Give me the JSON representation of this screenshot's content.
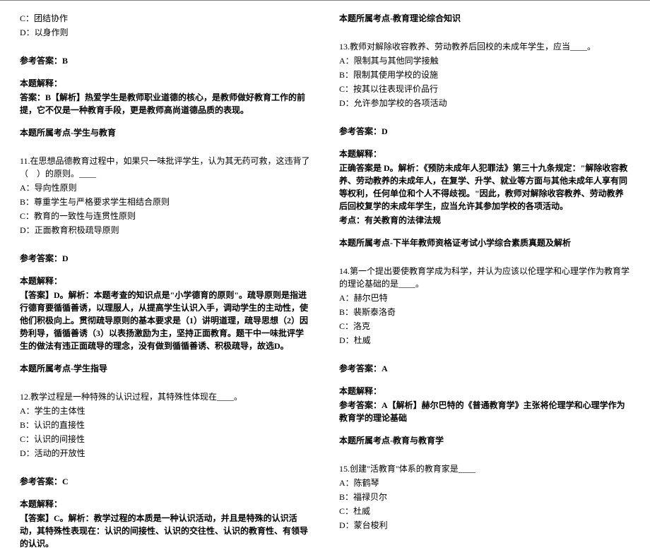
{
  "left": {
    "optC": "C：团结协作",
    "optD": "D：以身作则",
    "ans10_label": "参考答案：B",
    "ans10_exp_title": "本题解释：",
    "ans10_exp_body": "答案：B【解析】热爱学生是教师职业道德的核心，是教师做好教育工作的前提，它不仅是一种教育手段，更是教师高尚道德品质的表现。",
    "ans10_topic": "本题所属考点-学生与教育",
    "q11_stem": "11.在思想品德教育过程中，如果只一味批评学生，认为其无药可救，这违背了（　）的原则。____",
    "q11_A": "A：导向性原则",
    "q11_B": "B：尊重学生与严格要求学生相结合原则",
    "q11_C": "C：教育的一致性与连贯性原则",
    "q11_D": "D：正面教育积极疏导原则",
    "ans11_label": "参考答案：D",
    "ans11_exp_title": "本题解释：",
    "ans11_exp_body": "【答案】D。解析：本题考查的知识点是\"小学德育的原则\"。疏导原则是指进行德育要循循善诱，以理服人，从提高学生认识入手，调动学生的主动性，使他们积极向上。贯彻疏导原则的基本要求是（1）讲明道理，疏导思想（2）因势利导，循循善诱（3）以表扬激励为主，坚持正面教育。题干中一味批评学生的做法有违正面疏导的理念，没有做到循循善诱、积极疏导，故选D。",
    "ans11_topic": "本题所属考点-学生指导",
    "q12_stem": "12.教学过程是一种特殊的认识过程，其特殊性体现在____。",
    "q12_A": "A：学生的主体性",
    "q12_B": "B：认识的直接性",
    "q12_C": "C：认识的间接性",
    "q12_D": "D：活动的开放性",
    "ans12_label": "参考答案：C",
    "ans12_exp_title": "本题解释：",
    "ans12_exp_body": "【答案】C。解析：教学过程的本质是一种认识活动，并且是特殊的认识活动，其特殊性表现在：认识的间接性、认识的交往性、认识的教育性、有领导的认识。"
  },
  "right": {
    "topic_top": "本题所属考点-教育理论综合知识",
    "q13_stem": "13.教师对解除收容教养、劳动教养后回校的未成年学生，应当____。",
    "q13_A": "A：限制其与其他同学接触",
    "q13_B": "B：限制其使用学校的设施",
    "q13_C": "C：按其以往表现评价品行",
    "q13_D": "D：允许参加学校的各项活动",
    "ans13_label": "参考答案：D",
    "ans13_exp_title": "本题解释：",
    "ans13_exp_body": "正确答案是 D。解析：《预防未成年人犯罪法》第三十九条规定：\"解除收容教养、劳动教养的未成年人，在复学、升学、就业等方面与其他未成年人享有同等权利，任何单位和个人不得歧视。\"因此，教师对解除收容教养、劳动教养后回校复学的未成年学生，应当允许其参加学校的各项活动。",
    "ans13_exp_kp": "考点：有关教育的法律法规",
    "ans13_topic": "本题所属考点-下半年教师资格证考试小学综合素质真题及解析",
    "q14_stem": "14.第一个提出要使教育学成为科学，并认为应该以伦理学和心理学作为教育学的理论基础的是____。",
    "q14_A": "A：赫尔巴特",
    "q14_B": "B：裴斯泰洛奇",
    "q14_C": "C：洛克",
    "q14_D": "D：杜威",
    "ans14_label": "参考答案：A",
    "ans14_exp_title": "本题解释：",
    "ans14_exp_body": "参考答案：A【解析】赫尔巴特的《普通教育学》主张将伦理学和心理学作为教育学的理论基础",
    "ans14_topic": "本题所属考点-教育与教育学",
    "q15_stem": "15.创建\"活教育\"体系的教育家是____",
    "q15_A": "A：陈鹤琴",
    "q15_B": "B：福禄贝尔",
    "q15_C": "C：杜威",
    "q15_D": "D：蒙台梭利"
  }
}
